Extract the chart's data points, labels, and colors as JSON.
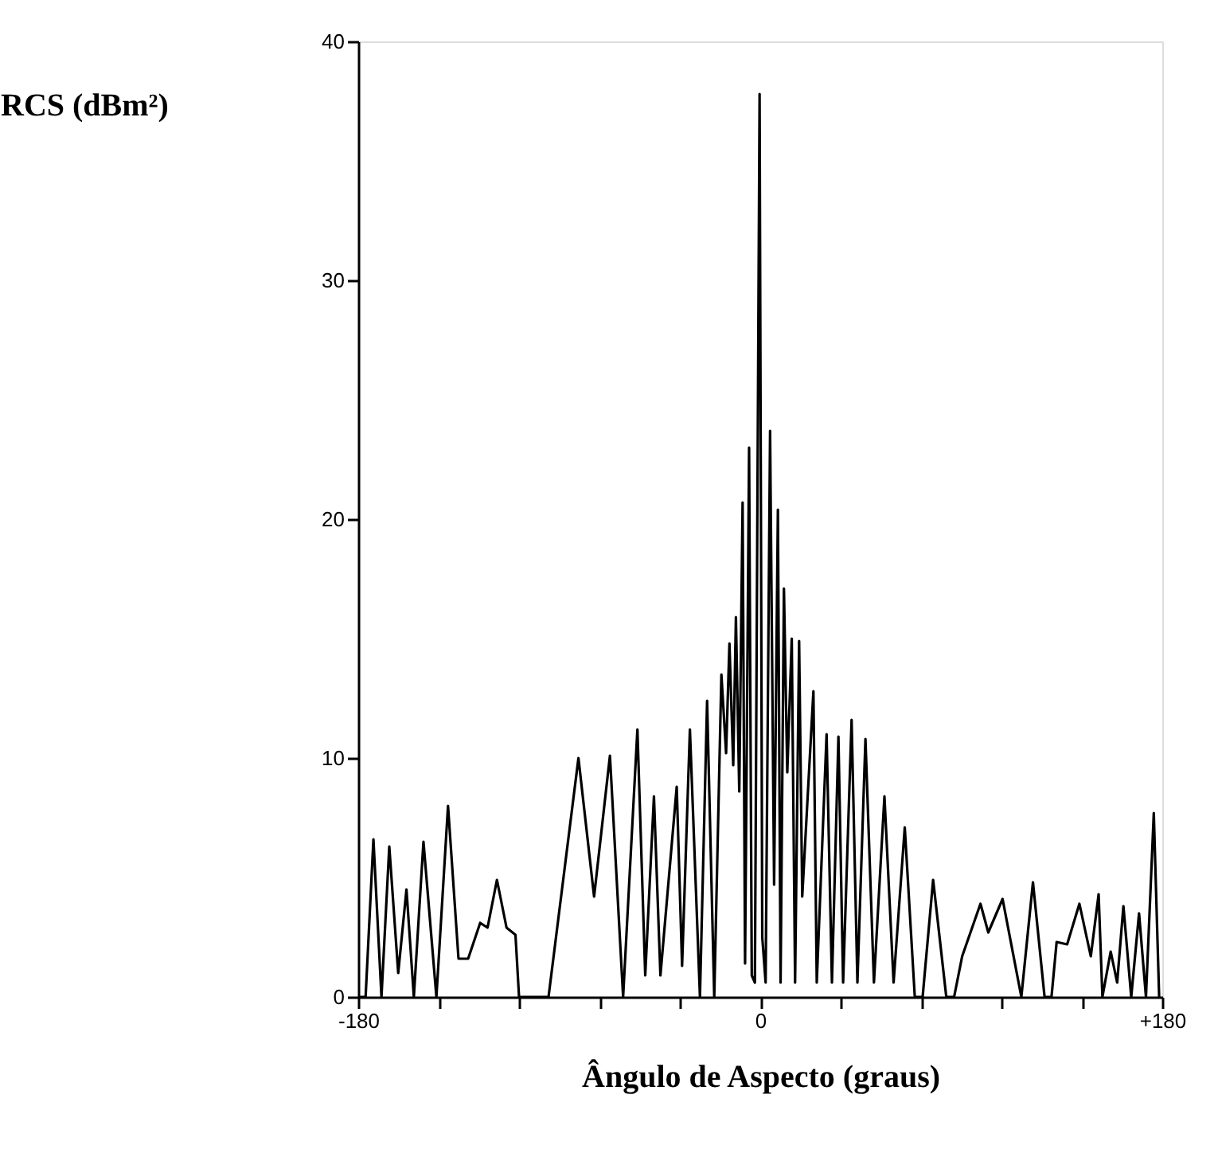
{
  "chart_data": {
    "type": "line",
    "xlabel": "Ângulo de Aspecto (graus)",
    "ylabel": "RCS (dBm²)",
    "x": [
      -179,
      -176.7,
      -173.2,
      -169.6,
      -166.1,
      -162.1,
      -158.4,
      -155.1,
      -150.8,
      -145,
      -139.8,
      -135.1,
      -130.8,
      -125.4,
      -122.1,
      -117.9,
      -113.6,
      -109.6,
      -108,
      -94.8,
      -81.4,
      -74.4,
      -67.3,
      -61.4,
      -55,
      -51.5,
      -47.6,
      -44.7,
      -37.4,
      -35,
      -31.5,
      -27,
      -23.8,
      -20.6,
      -17.4,
      -15.3,
      -13.8,
      -12.1,
      -10.9,
      -9.4,
      -7.9,
      -6.8,
      -5,
      -3.8,
      -2.4,
      -0.3,
      0.9,
      2.4,
      4.4,
      6.2,
      7.9,
      9.1,
      10.6,
      12.1,
      14.1,
      15.6,
      17.4,
      18.8,
      23.8,
      25.3,
      29.7,
      32.1,
      35,
      37.1,
      40.9,
      43.5,
      47.1,
      50.9,
      55.6,
      59.7,
      64.7,
      69.2,
      72.7,
      77.4,
      83.3,
      86.8,
      90.4,
      98.6,
      102.1,
      108.5,
      116.9,
      122.1,
      127.3,
      130.4,
      132.7,
      137.4,
      142.9,
      148,
      151.5,
      153.2,
      156.9,
      159.8,
      162.6,
      166.1,
      169.6,
      172.7,
      176.2,
      178.6
    ],
    "series": [
      {
        "color": "#000000",
        "values": [
          0,
          0,
          6.6,
          0,
          6.3,
          1.0,
          4.5,
          0,
          6.5,
          0,
          8.0,
          1.6,
          1.6,
          3.1,
          2.9,
          4.9,
          2.9,
          2.6,
          0,
          0,
          10.0,
          4.2,
          10.1,
          0,
          11.2,
          0.9,
          8.4,
          0.9,
          8.8,
          1.3,
          11.2,
          0,
          12.4,
          0,
          13.5,
          10.2,
          14.8,
          9.7,
          15.9,
          8.6,
          20.7,
          1.4,
          23.0,
          0.9,
          0.6,
          37.8,
          2.5,
          0.6,
          23.7,
          4.7,
          20.4,
          0.6,
          17.1,
          9.4,
          15.0,
          0.6,
          14.9,
          4.2,
          12.8,
          0.6,
          11.0,
          0.6,
          10.9,
          0.6,
          11.6,
          0.6,
          10.8,
          0.6,
          8.4,
          0.6,
          7.1,
          0,
          0,
          4.9,
          0,
          0,
          1.7,
          3.9,
          2.7,
          4.1,
          0,
          4.8,
          0,
          0,
          2.3,
          2.2,
          3.9,
          1.7,
          4.3,
          0,
          1.9,
          0.6,
          3.8,
          0,
          3.5,
          0,
          7.7,
          0
        ]
      }
    ],
    "xlim": [
      -180,
      180
    ],
    "xticks": [
      -180,
      {
        "value": -144,
        "label": null
      },
      {
        "value": -108,
        "label": null
      },
      {
        "value": -72,
        "label": null
      },
      {
        "value": -36,
        "label": null
      },
      0,
      {
        "value": 36,
        "label": null
      },
      {
        "value": 72,
        "label": null
      },
      {
        "value": 108,
        "label": null
      },
      {
        "value": 144,
        "label": null
      },
      {
        "value": 180,
        "label": "+180"
      }
    ],
    "ylim": [
      0,
      40
    ],
    "yticks": [
      0,
      10,
      20,
      30,
      40
    ],
    "grid": false,
    "marker": "none",
    "line_style": "solid"
  }
}
